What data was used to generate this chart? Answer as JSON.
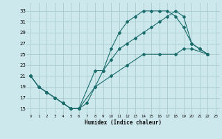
{
  "background_color": "#cce8ec",
  "grid_color": "#aacccc",
  "line_color": "#1a6b6b",
  "line1_x": [
    0,
    1,
    2,
    3,
    4,
    5,
    6,
    7,
    8,
    9,
    10,
    11,
    12,
    13,
    14,
    15,
    16,
    17,
    18,
    19,
    20,
    21,
    22
  ],
  "line1_y": [
    21,
    19,
    18,
    17,
    16,
    15,
    15,
    16,
    19,
    22,
    26,
    29,
    31,
    32,
    33,
    33,
    33,
    33,
    32,
    30,
    27,
    26,
    25
  ],
  "line2_x": [
    0,
    1,
    2,
    3,
    4,
    5,
    6,
    8,
    9,
    10,
    11,
    12,
    13,
    14,
    15,
    16,
    17,
    18,
    19,
    20,
    21,
    22
  ],
  "line2_y": [
    21,
    19,
    18,
    17,
    16,
    15,
    15,
    22,
    22,
    24,
    26,
    27,
    28,
    29,
    30,
    31,
    32,
    33,
    32,
    27,
    26,
    25
  ],
  "line3_x": [
    0,
    1,
    2,
    3,
    4,
    5,
    6,
    8,
    10,
    12,
    14,
    16,
    18,
    19,
    20,
    22
  ],
  "line3_y": [
    21,
    19,
    18,
    17,
    16,
    15,
    15,
    19,
    21,
    23,
    25,
    25,
    25,
    26,
    26,
    25
  ],
  "xlim": [
    -0.5,
    23.5
  ],
  "ylim": [
    14,
    34.5
  ],
  "xtick_vals": [
    0,
    1,
    2,
    3,
    4,
    5,
    6,
    7,
    8,
    9,
    10,
    11,
    12,
    13,
    14,
    15,
    16,
    17,
    18,
    19,
    20,
    21,
    22,
    23
  ],
  "ytick_vals": [
    15,
    17,
    19,
    21,
    23,
    25,
    27,
    29,
    31,
    33
  ],
  "xlabel": "Humidex (Indice chaleur)"
}
